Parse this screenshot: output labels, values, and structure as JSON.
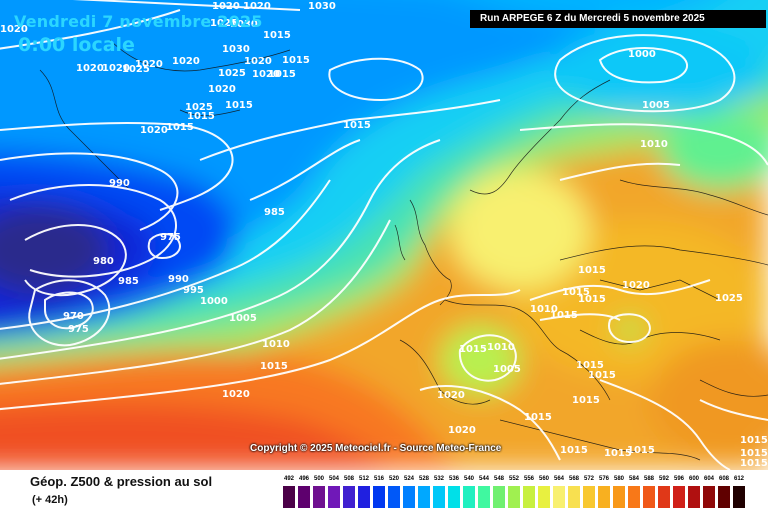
{
  "header": {
    "date": "Vendredi 7 novembre 2025",
    "local_time": "0:00 locale",
    "run_info": "Run ARPEGE 6 Z du Mercredi 5 novembre 2025"
  },
  "copyright": "Copyright © 2025 Meteociel.fr - Source Meteo-France",
  "footer": {
    "title": "Géop. Z500 & pression au sol",
    "subtitle": "(+ 42h)"
  },
  "isobar_labels": [
    "1020",
    "1030",
    "1020",
    "1025",
    "1020",
    "1030",
    "1030",
    "1015",
    "1020",
    "1020",
    "1025",
    "1020",
    "1025",
    "1020",
    "1015",
    "1020",
    "1015",
    "1020",
    "1025",
    "1015",
    "1020",
    "1015",
    "1020",
    "1015",
    "1000",
    "1005",
    "1010",
    "1015",
    "990",
    "985",
    "975",
    "980",
    "985",
    "990",
    "995",
    "1000",
    "970",
    "975",
    "1005",
    "1010",
    "1015",
    "1020",
    "1010",
    "1015",
    "1005",
    "1020",
    "1020",
    "1015",
    "1015",
    "1015",
    "1015",
    "1020",
    "1025",
    "1015",
    "1015",
    "1010",
    "1015",
    "1015",
    "1015",
    "1015",
    "1015",
    "1015",
    "1015",
    "1015"
  ],
  "scale": {
    "labels": [
      "492",
      "496",
      "500",
      "504",
      "508",
      "512",
      "516",
      "520",
      "524",
      "528",
      "532",
      "536",
      "540",
      "544",
      "548",
      "552",
      "556",
      "560",
      "564",
      "568",
      "572",
      "576",
      "580",
      "584",
      "588",
      "592",
      "596",
      "600",
      "604",
      "608",
      "612"
    ],
    "colors": [
      "#4b0048",
      "#5e006e",
      "#6f1090",
      "#7018b8",
      "#4020d0",
      "#2020e0",
      "#0038f0",
      "#0058f8",
      "#0080ff",
      "#00a8ff",
      "#00c8f8",
      "#00e0e8",
      "#20f0c0",
      "#40f8a0",
      "#70f070",
      "#a0f050",
      "#c8f040",
      "#e8f040",
      "#f8f070",
      "#f8e050",
      "#f8c830",
      "#f8b020",
      "#f89818",
      "#f87818",
      "#f05818",
      "#e03818",
      "#d02018",
      "#b01010",
      "#900808",
      "#600000",
      "#200000"
    ]
  }
}
